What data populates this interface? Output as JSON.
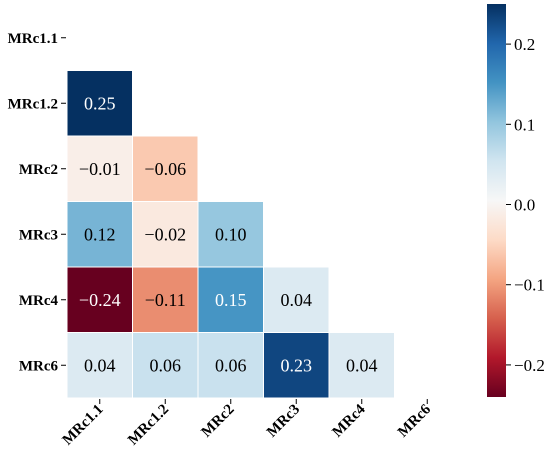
{
  "chart_data": {
    "type": "heatmap",
    "title": "",
    "labels": [
      "MRc1.1",
      "MRc1.2",
      "MRc2",
      "MRc3",
      "MRc4",
      "MRc6"
    ],
    "cells": [
      {
        "row": "MRc1.2",
        "col": "MRc1.1",
        "value": 0.25,
        "label": "0.25"
      },
      {
        "row": "MRc2",
        "col": "MRc1.1",
        "value": -0.01,
        "label": "−0.01"
      },
      {
        "row": "MRc2",
        "col": "MRc1.2",
        "value": -0.06,
        "label": "−0.06"
      },
      {
        "row": "MRc3",
        "col": "MRc1.1",
        "value": 0.12,
        "label": "0.12"
      },
      {
        "row": "MRc3",
        "col": "MRc1.2",
        "value": -0.02,
        "label": "−0.02"
      },
      {
        "row": "MRc3",
        "col": "MRc2",
        "value": 0.1,
        "label": "0.10"
      },
      {
        "row": "MRc4",
        "col": "MRc1.1",
        "value": -0.24,
        "label": "−0.24"
      },
      {
        "row": "MRc4",
        "col": "MRc1.2",
        "value": -0.11,
        "label": "−0.11"
      },
      {
        "row": "MRc4",
        "col": "MRc2",
        "value": 0.15,
        "label": "0.15"
      },
      {
        "row": "MRc4",
        "col": "MRc3",
        "value": 0.04,
        "label": "0.04"
      },
      {
        "row": "MRc6",
        "col": "MRc1.1",
        "value": 0.04,
        "label": "0.04"
      },
      {
        "row": "MRc6",
        "col": "MRc1.2",
        "value": 0.06,
        "label": "0.06"
      },
      {
        "row": "MRc6",
        "col": "MRc2",
        "value": 0.06,
        "label": "0.06"
      },
      {
        "row": "MRc6",
        "col": "MRc3",
        "value": 0.23,
        "label": "0.23"
      },
      {
        "row": "MRc6",
        "col": "MRc4",
        "value": 0.04,
        "label": "0.04"
      }
    ],
    "colorbar": {
      "range": [
        -0.24,
        0.25
      ],
      "ticks": [
        {
          "value": 0.2,
          "label": "0.2"
        },
        {
          "value": 0.1,
          "label": "0.1"
        },
        {
          "value": 0.0,
          "label": "0.0"
        },
        {
          "value": -0.1,
          "label": "−0.1"
        },
        {
          "value": -0.2,
          "label": "−0.2"
        }
      ],
      "colormap": "RdBu"
    },
    "mask": "upper-triangle"
  }
}
